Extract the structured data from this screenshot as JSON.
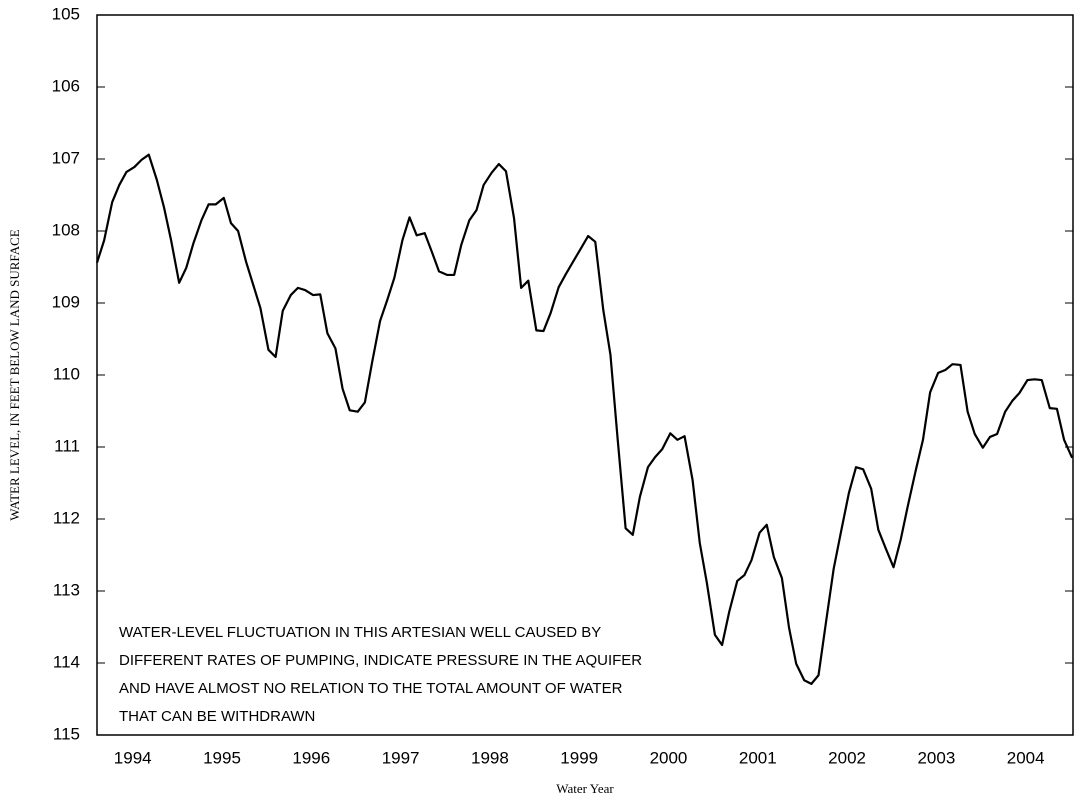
{
  "chart_data": {
    "type": "line",
    "x_label": "Water Year",
    "y_label": "WATER LEVEL, IN FEET BELOW LAND SURFACE",
    "annotation": [
      "WATER-LEVEL FLUCTUATION IN THIS ARTESIAN WELL CAUSED BY",
      "DIFFERENT RATES OF PUMPING, INDICATE PRESSURE IN THE AQUIFER",
      "AND HAVE ALMOST NO RELATION TO THE TOTAL AMOUNT OF WATER",
      "THAT CAN BE WITHDRAWN"
    ],
    "xlim": [
      1994.1,
      2005.03
    ],
    "ylim": [
      105,
      115
    ],
    "y_inverted": true,
    "yticks": [
      105,
      106,
      107,
      108,
      109,
      110,
      111,
      112,
      113,
      114,
      115
    ],
    "xticks": [
      {
        "value": 1994.5,
        "label": "1994"
      },
      {
        "value": 1995.5,
        "label": "1995"
      },
      {
        "value": 1996.5,
        "label": "1996"
      },
      {
        "value": 1997.5,
        "label": "1997"
      },
      {
        "value": 1998.5,
        "label": "1998"
      },
      {
        "value": 1999.5,
        "label": "1999"
      },
      {
        "value": 2000.5,
        "label": "2000"
      },
      {
        "value": 2001.5,
        "label": "2001"
      },
      {
        "value": 2002.5,
        "label": "2002"
      },
      {
        "value": 2003.5,
        "label": "2003"
      },
      {
        "value": 2004.5,
        "label": "2004"
      }
    ],
    "x": [
      1994.1,
      1994.18,
      1994.27,
      1994.35,
      1994.43,
      1994.52,
      1994.6,
      1994.68,
      1994.77,
      1994.85,
      1994.93,
      1995.02,
      1995.1,
      1995.18,
      1995.27,
      1995.35,
      1995.43,
      1995.52,
      1995.6,
      1995.68,
      1995.77,
      1995.85,
      1995.93,
      1996.02,
      1996.1,
      1996.18,
      1996.27,
      1996.35,
      1996.43,
      1996.52,
      1996.6,
      1996.68,
      1996.77,
      1996.85,
      1996.93,
      1997.02,
      1997.1,
      1997.18,
      1997.27,
      1997.35,
      1997.43,
      1997.52,
      1997.6,
      1997.68,
      1997.77,
      1997.85,
      1997.93,
      1998.02,
      1998.1,
      1998.18,
      1998.27,
      1998.35,
      1998.43,
      1998.52,
      1998.6,
      1998.68,
      1998.77,
      1998.85,
      1998.93,
      1999.02,
      1999.1,
      1999.18,
      1999.27,
      1999.35,
      1999.43,
      1999.52,
      1999.6,
      1999.68,
      1999.77,
      1999.85,
      1999.93,
      2000.02,
      2000.1,
      2000.18,
      2000.27,
      2000.35,
      2000.43,
      2000.52,
      2000.6,
      2000.68,
      2000.77,
      2000.85,
      2000.93,
      2001.02,
      2001.1,
      2001.18,
      2001.27,
      2001.35,
      2001.43,
      2001.52,
      2001.6,
      2001.68,
      2001.77,
      2001.85,
      2001.93,
      2002.02,
      2002.1,
      2002.18,
      2002.27,
      2002.35,
      2002.43,
      2002.52,
      2002.6,
      2002.68,
      2002.77,
      2002.85,
      2002.93,
      2003.02,
      2003.1,
      2003.18,
      2003.27,
      2003.35,
      2003.43,
      2003.52,
      2003.6,
      2003.68,
      2003.77,
      2003.85,
      2003.93,
      2004.02,
      2004.1,
      2004.18,
      2004.27,
      2004.35,
      2004.43,
      2004.52,
      2004.6,
      2004.68,
      2004.77,
      2004.85,
      2004.93,
      2005.02
    ],
    "series": [
      {
        "color": "#000000",
        "values": [
          108.44,
          108.13,
          107.6,
          107.36,
          107.18,
          107.11,
          107.01,
          106.94,
          107.29,
          107.67,
          108.13,
          108.72,
          108.51,
          108.17,
          107.85,
          107.63,
          107.63,
          107.54,
          107.89,
          108.0,
          108.43,
          108.75,
          109.07,
          109.65,
          109.75,
          109.11,
          108.89,
          108.79,
          108.82,
          108.89,
          108.88,
          109.42,
          109.63,
          110.19,
          110.49,
          110.51,
          110.38,
          109.83,
          109.25,
          108.96,
          108.65,
          108.13,
          107.81,
          108.06,
          108.03,
          108.29,
          108.56,
          108.61,
          108.61,
          108.19,
          107.85,
          107.71,
          107.36,
          107.19,
          107.07,
          107.17,
          107.82,
          108.79,
          108.69,
          109.38,
          109.39,
          109.14,
          108.78,
          108.6,
          108.43,
          108.24,
          108.07,
          108.15,
          109.1,
          109.72,
          110.88,
          112.13,
          112.22,
          111.69,
          111.28,
          111.14,
          111.03,
          110.81,
          110.9,
          110.85,
          111.46,
          112.33,
          112.89,
          113.61,
          113.75,
          113.29,
          112.86,
          112.78,
          112.57,
          112.19,
          112.08,
          112.53,
          112.82,
          113.51,
          114.01,
          114.24,
          114.29,
          114.17,
          113.38,
          112.69,
          112.19,
          111.64,
          111.28,
          111.31,
          111.58,
          112.15,
          112.4,
          112.67,
          112.29,
          111.82,
          111.32,
          110.9,
          110.24,
          109.97,
          109.93,
          109.85,
          109.86,
          110.51,
          110.82,
          111.01,
          110.86,
          110.82,
          110.51,
          110.36,
          110.25,
          110.07,
          110.06,
          110.07,
          110.46,
          110.47,
          110.9,
          111.15
        ]
      }
    ]
  }
}
